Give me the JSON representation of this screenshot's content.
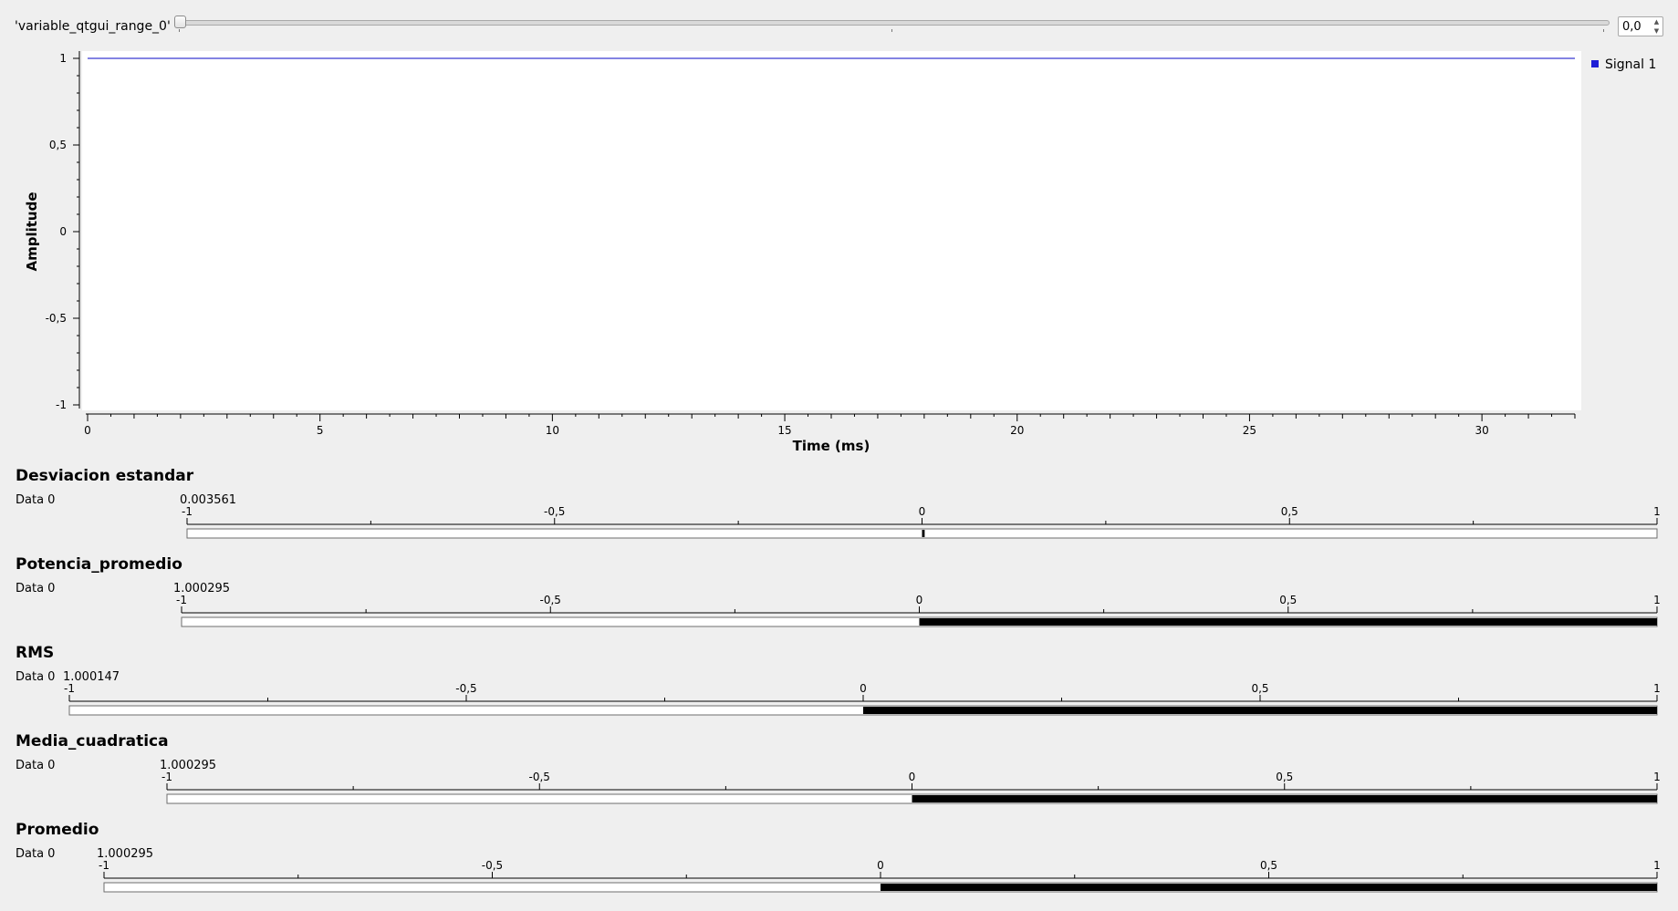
{
  "slider": {
    "label": "'variable_qtgui_range_0'",
    "value": "0,0",
    "position": 0
  },
  "time_plot": {
    "ylabel": "Amplitude",
    "xlabel": "Time (ms)",
    "legend": [
      {
        "name": "Signal 1",
        "color": "#1f1fd6"
      }
    ],
    "line_color": "#5a5ad8",
    "chart_data": {
      "type": "line",
      "xlabel": "Time (ms)",
      "ylabel": "Amplitude",
      "xlim": [
        0,
        32
      ],
      "ylim": [
        -1,
        1
      ],
      "x_ticks": [
        0,
        5,
        10,
        15,
        20,
        25,
        30
      ],
      "x_tick_labels": [
        "0",
        "5",
        "10",
        "15",
        "20",
        "25",
        "30"
      ],
      "y_ticks": [
        1,
        0.5,
        0,
        -0.5,
        -1
      ],
      "y_tick_labels": [
        "1",
        "0,5",
        "0",
        "-0,5",
        "-1"
      ],
      "legend_position": "top-right",
      "series": [
        {
          "name": "Signal 1",
          "x": [
            0,
            32
          ],
          "y": [
            1,
            1
          ]
        }
      ]
    }
  },
  "meters": [
    {
      "title": "Desviacion estandar",
      "label": "Data 0",
      "value_text": "0.003561",
      "value": 0.003561,
      "min": -1,
      "max": 1,
      "tick_labels": [
        "-1",
        "-0,5",
        "0",
        "0,5",
        "1"
      ]
    },
    {
      "title": "Potencia_promedio",
      "label": "Data 0",
      "value_text": "1.000295",
      "value": 1.000295,
      "min": -1,
      "max": 1,
      "tick_labels": [
        "-1",
        "-0,5",
        "0",
        "0,5",
        "1"
      ]
    },
    {
      "title": "RMS",
      "label": "Data 0",
      "value_text": "1.000147",
      "value": 1.000147,
      "min": -1,
      "max": 1,
      "tick_labels": [
        "-1",
        "-0,5",
        "0",
        "0,5",
        "1"
      ]
    },
    {
      "title": "Media_cuadratica",
      "label": "Data 0",
      "value_text": "1.000295",
      "value": 1.000295,
      "min": -1,
      "max": 1,
      "tick_labels": [
        "-1",
        "-0,5",
        "0",
        "0,5",
        "1"
      ]
    },
    {
      "title": "Promedio",
      "label": "Data 0",
      "value_text": "1.000295",
      "value": 1.000295,
      "min": -1,
      "max": 1,
      "tick_labels": [
        "-1",
        "-0,5",
        "0",
        "0,5",
        "1"
      ]
    }
  ]
}
